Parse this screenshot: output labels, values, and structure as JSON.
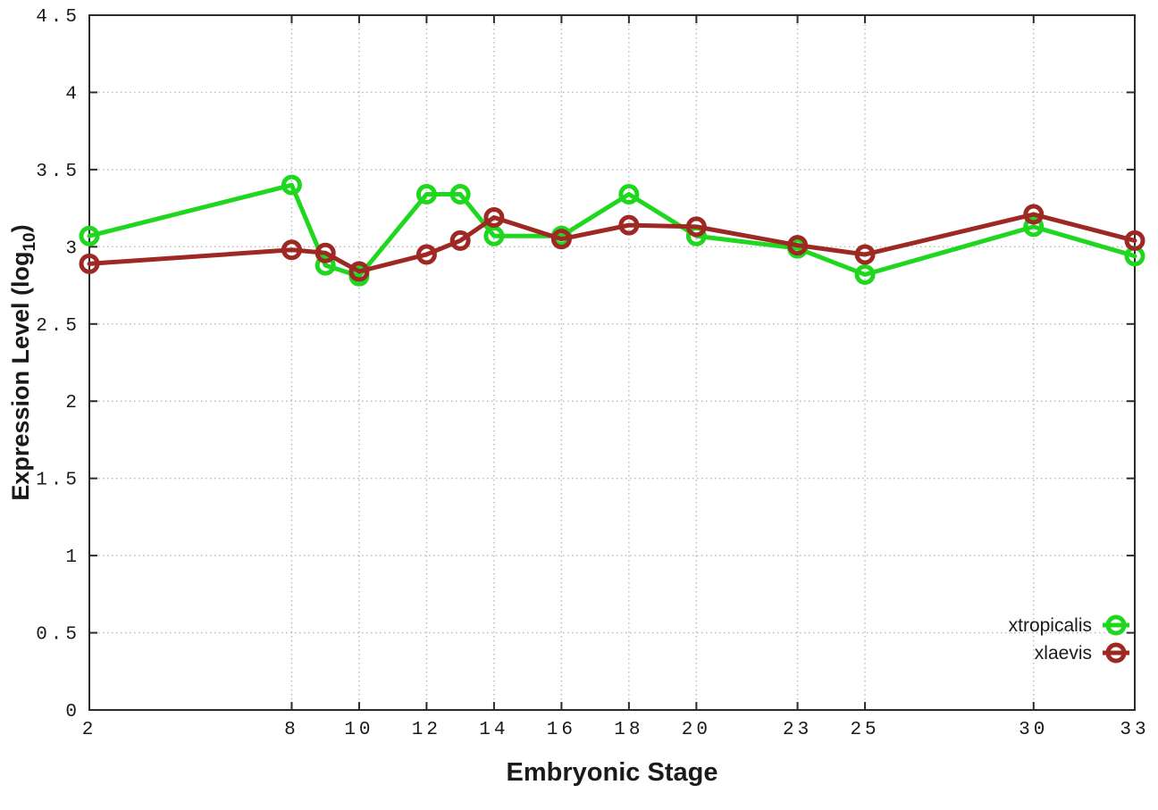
{
  "page": {
    "background": "#ffffff"
  },
  "chart_data": {
    "type": "line",
    "title": "",
    "xlabel": "Embryonic Stage",
    "ylabel": {
      "main": "Expression Level (log",
      "sub": "10",
      "end": ")"
    },
    "xlim": [
      2,
      33
    ],
    "ylim": [
      0,
      4.5
    ],
    "grid": true,
    "legend_position": "bottom-right",
    "x": [
      2,
      8,
      9,
      10,
      12,
      13,
      14,
      16,
      18,
      20,
      23,
      25,
      30,
      33
    ],
    "x_ticks": [
      {
        "v": 2,
        "label": "2"
      },
      {
        "v": 8,
        "label": "8"
      },
      {
        "v": 10,
        "label": "10"
      },
      {
        "v": 12,
        "label": "12"
      },
      {
        "v": 14,
        "label": "14"
      },
      {
        "v": 16,
        "label": "16"
      },
      {
        "v": 18,
        "label": "18"
      },
      {
        "v": 20,
        "label": "20"
      },
      {
        "v": 23,
        "label": "23"
      },
      {
        "v": 25,
        "label": "25"
      },
      {
        "v": 30,
        "label": "30"
      },
      {
        "v": 33,
        "label": "33"
      }
    ],
    "y_ticks": [
      {
        "v": 0,
        "label": "0"
      },
      {
        "v": 0.5,
        "label": "0.5"
      },
      {
        "v": 1,
        "label": "1"
      },
      {
        "v": 1.5,
        "label": "1.5"
      },
      {
        "v": 2,
        "label": "2"
      },
      {
        "v": 2.5,
        "label": "2.5"
      },
      {
        "v": 3,
        "label": "3"
      },
      {
        "v": 3.5,
        "label": "3.5"
      },
      {
        "v": 4,
        "label": "4"
      },
      {
        "v": 4.5,
        "label": "4.5"
      }
    ],
    "series": [
      {
        "name": "xtropicalis",
        "color": "#1fd71f",
        "marker": "open-circle",
        "values": [
          3.07,
          3.4,
          2.88,
          2.81,
          3.34,
          3.34,
          3.07,
          3.07,
          3.34,
          3.07,
          2.99,
          2.82,
          3.13,
          2.94
        ]
      },
      {
        "name": "xlaevis",
        "color": "#9e2823",
        "marker": "open-circle",
        "values": [
          2.89,
          2.98,
          2.96,
          2.84,
          2.95,
          3.04,
          3.19,
          3.05,
          3.14,
          3.13,
          3.01,
          2.95,
          3.21,
          3.04
        ]
      }
    ],
    "colors": {
      "axis": "#2b2b2b",
      "grid": "#b8b8b8",
      "text": "#1a1a1a"
    }
  }
}
